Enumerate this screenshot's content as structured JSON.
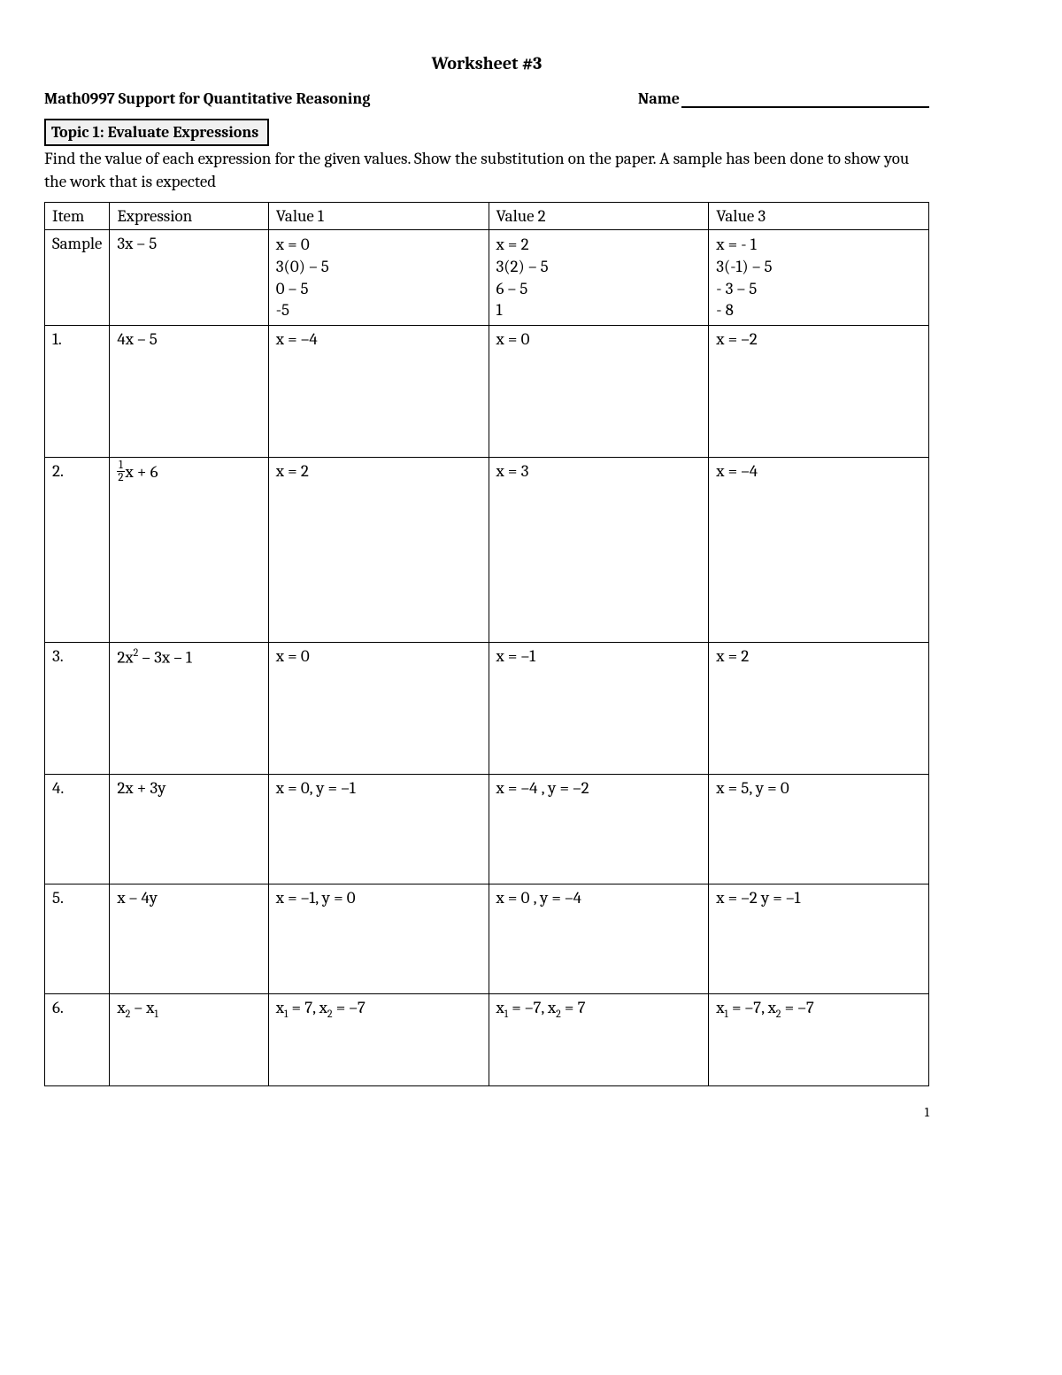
{
  "title": "Worksheet #3",
  "course": "Math0997 Support for Quantitative Reasoning",
  "name_label": "Name",
  "topic": "Topic 1:  Evaluate Expressions",
  "instructions": "Find the value of each expression for the given values.  Show the substitution on the paper.  A sample has been done to show you the work that is expected",
  "columns": [
    "Item",
    "Expression",
    "Value 1",
    "Value 2",
    "Value 3"
  ],
  "sample": {
    "item": "Sample",
    "expr": "3x – 5",
    "v1": [
      "x = 0",
      "3(0) – 5",
      "0 – 5",
      "-5"
    ],
    "v2": [
      "x = 2",
      "3(2) – 5",
      "6 – 5",
      "1"
    ],
    "v3": [
      "x = - 1",
      "3(-1) – 5",
      "- 3 – 5",
      "- 8"
    ]
  },
  "rows": [
    {
      "item": "1.",
      "expr": "4x – 5",
      "v1": "x = –4",
      "v2": "x = 0",
      "v3": "x = –2",
      "h": "row-tall"
    },
    {
      "item": "2.",
      "expr_html": "frac12",
      "expr_tail": "x + 6",
      "v1": "x = 2",
      "v2": "x = 3",
      "v3": "x = –4",
      "h": "row-taller"
    },
    {
      "item": "3.",
      "expr_html": "2x_sup2_ – 3x – 1",
      "v1": "x = 0",
      "v2": "x = –1",
      "v3": "x = 2",
      "h": "row-tall"
    },
    {
      "item": "4.",
      "expr": "2x + 3y",
      "v1": "x = 0, y = –1",
      "v2": "x = –4 , y = –2",
      "v3": "x = 5, y = 0",
      "h": "row-med"
    },
    {
      "item": "5.",
      "expr": "x – 4y",
      "v1": "x = –1, y = 0",
      "v2": "x = 0 , y = –4",
      "v3": "x = –2  y = –1",
      "h": "row-med"
    },
    {
      "item": "6.",
      "expr_html": "x_sub2_ – x_sub1_",
      "v1_html": "x_sub1_ = 7,   x_sub2_ = –7",
      "v2_html": "x_sub1_ = –7,  x_sub2_ = 7",
      "v3_html": "x_sub1_ = –7,  x_sub2_ = –7",
      "h": "row-short"
    }
  ],
  "page_num": "1"
}
